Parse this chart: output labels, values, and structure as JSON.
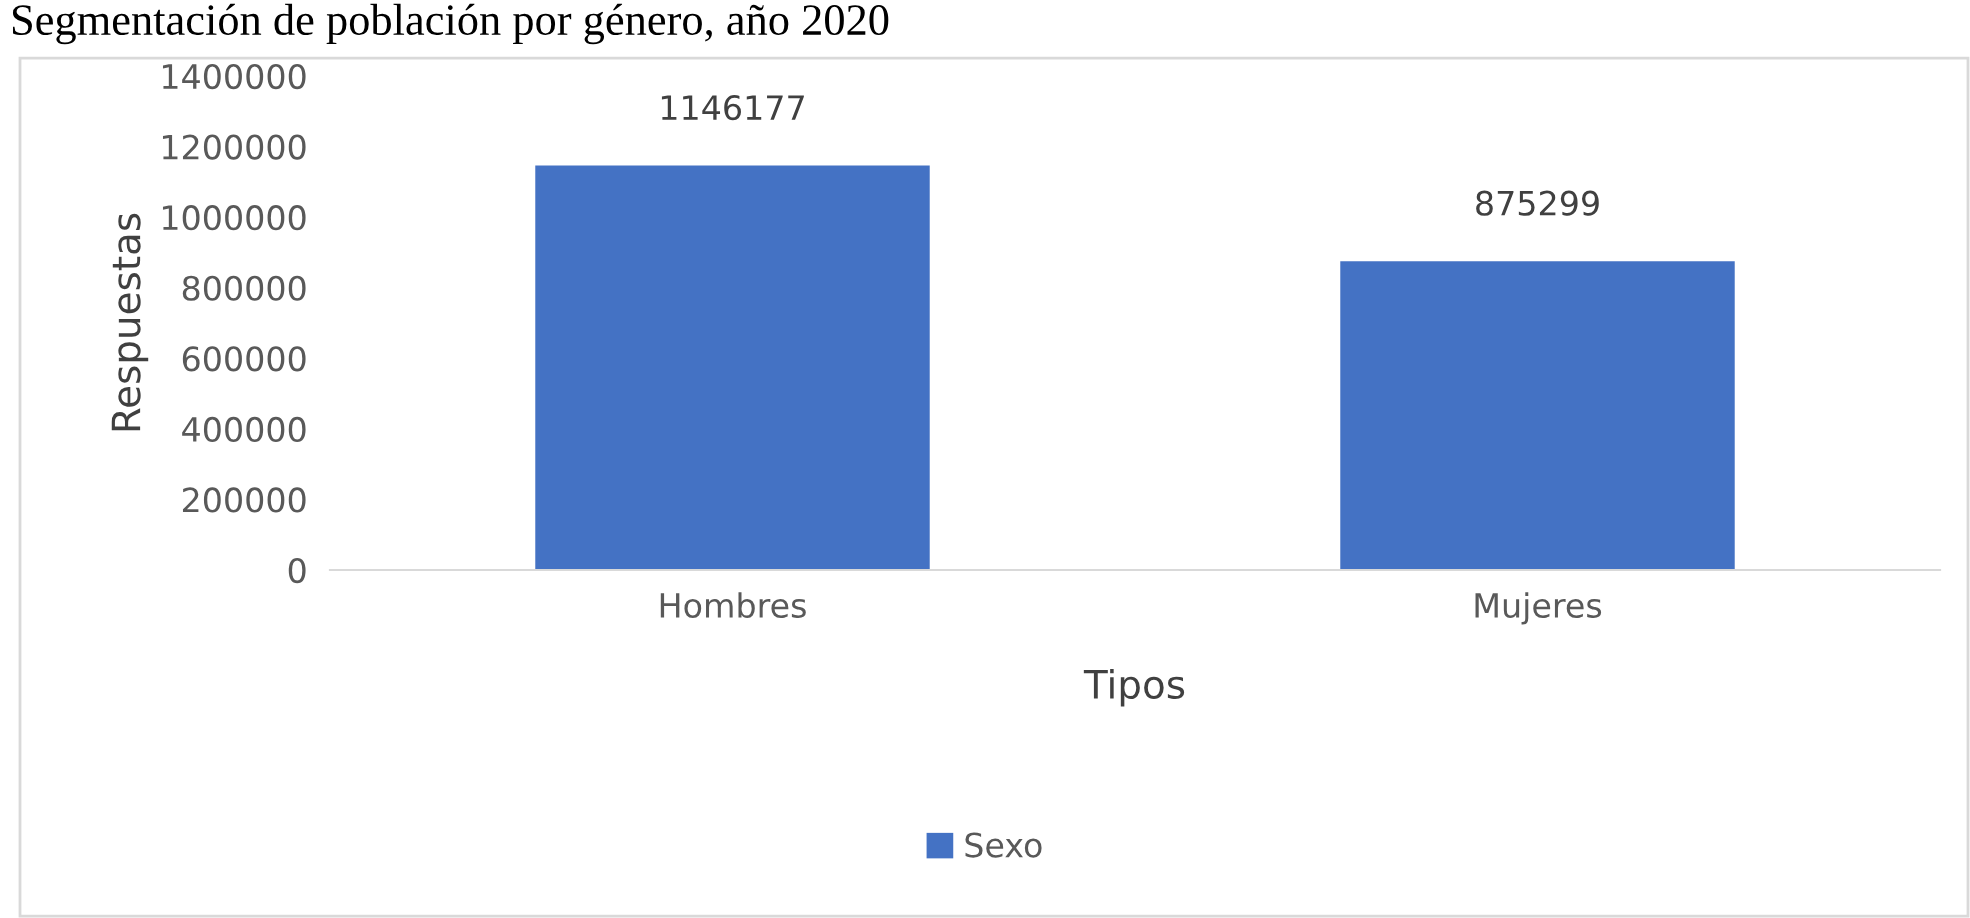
{
  "chart_data": {
    "type": "bar",
    "title": "Segmentación de población por género, año 2020",
    "xlabel": "Tipos",
    "ylabel": "Respuestas",
    "categories": [
      "Hombres",
      "Mujeres"
    ],
    "series": [
      {
        "name": "Sexo",
        "color": "#4472c4",
        "values": [
          1146177,
          875299
        ]
      }
    ],
    "ylim": [
      0,
      1400000
    ],
    "yticks": [
      0,
      200000,
      400000,
      600000,
      800000,
      1000000,
      1200000,
      1400000
    ],
    "data_labels": true,
    "grid": false,
    "legend": "bottom"
  }
}
